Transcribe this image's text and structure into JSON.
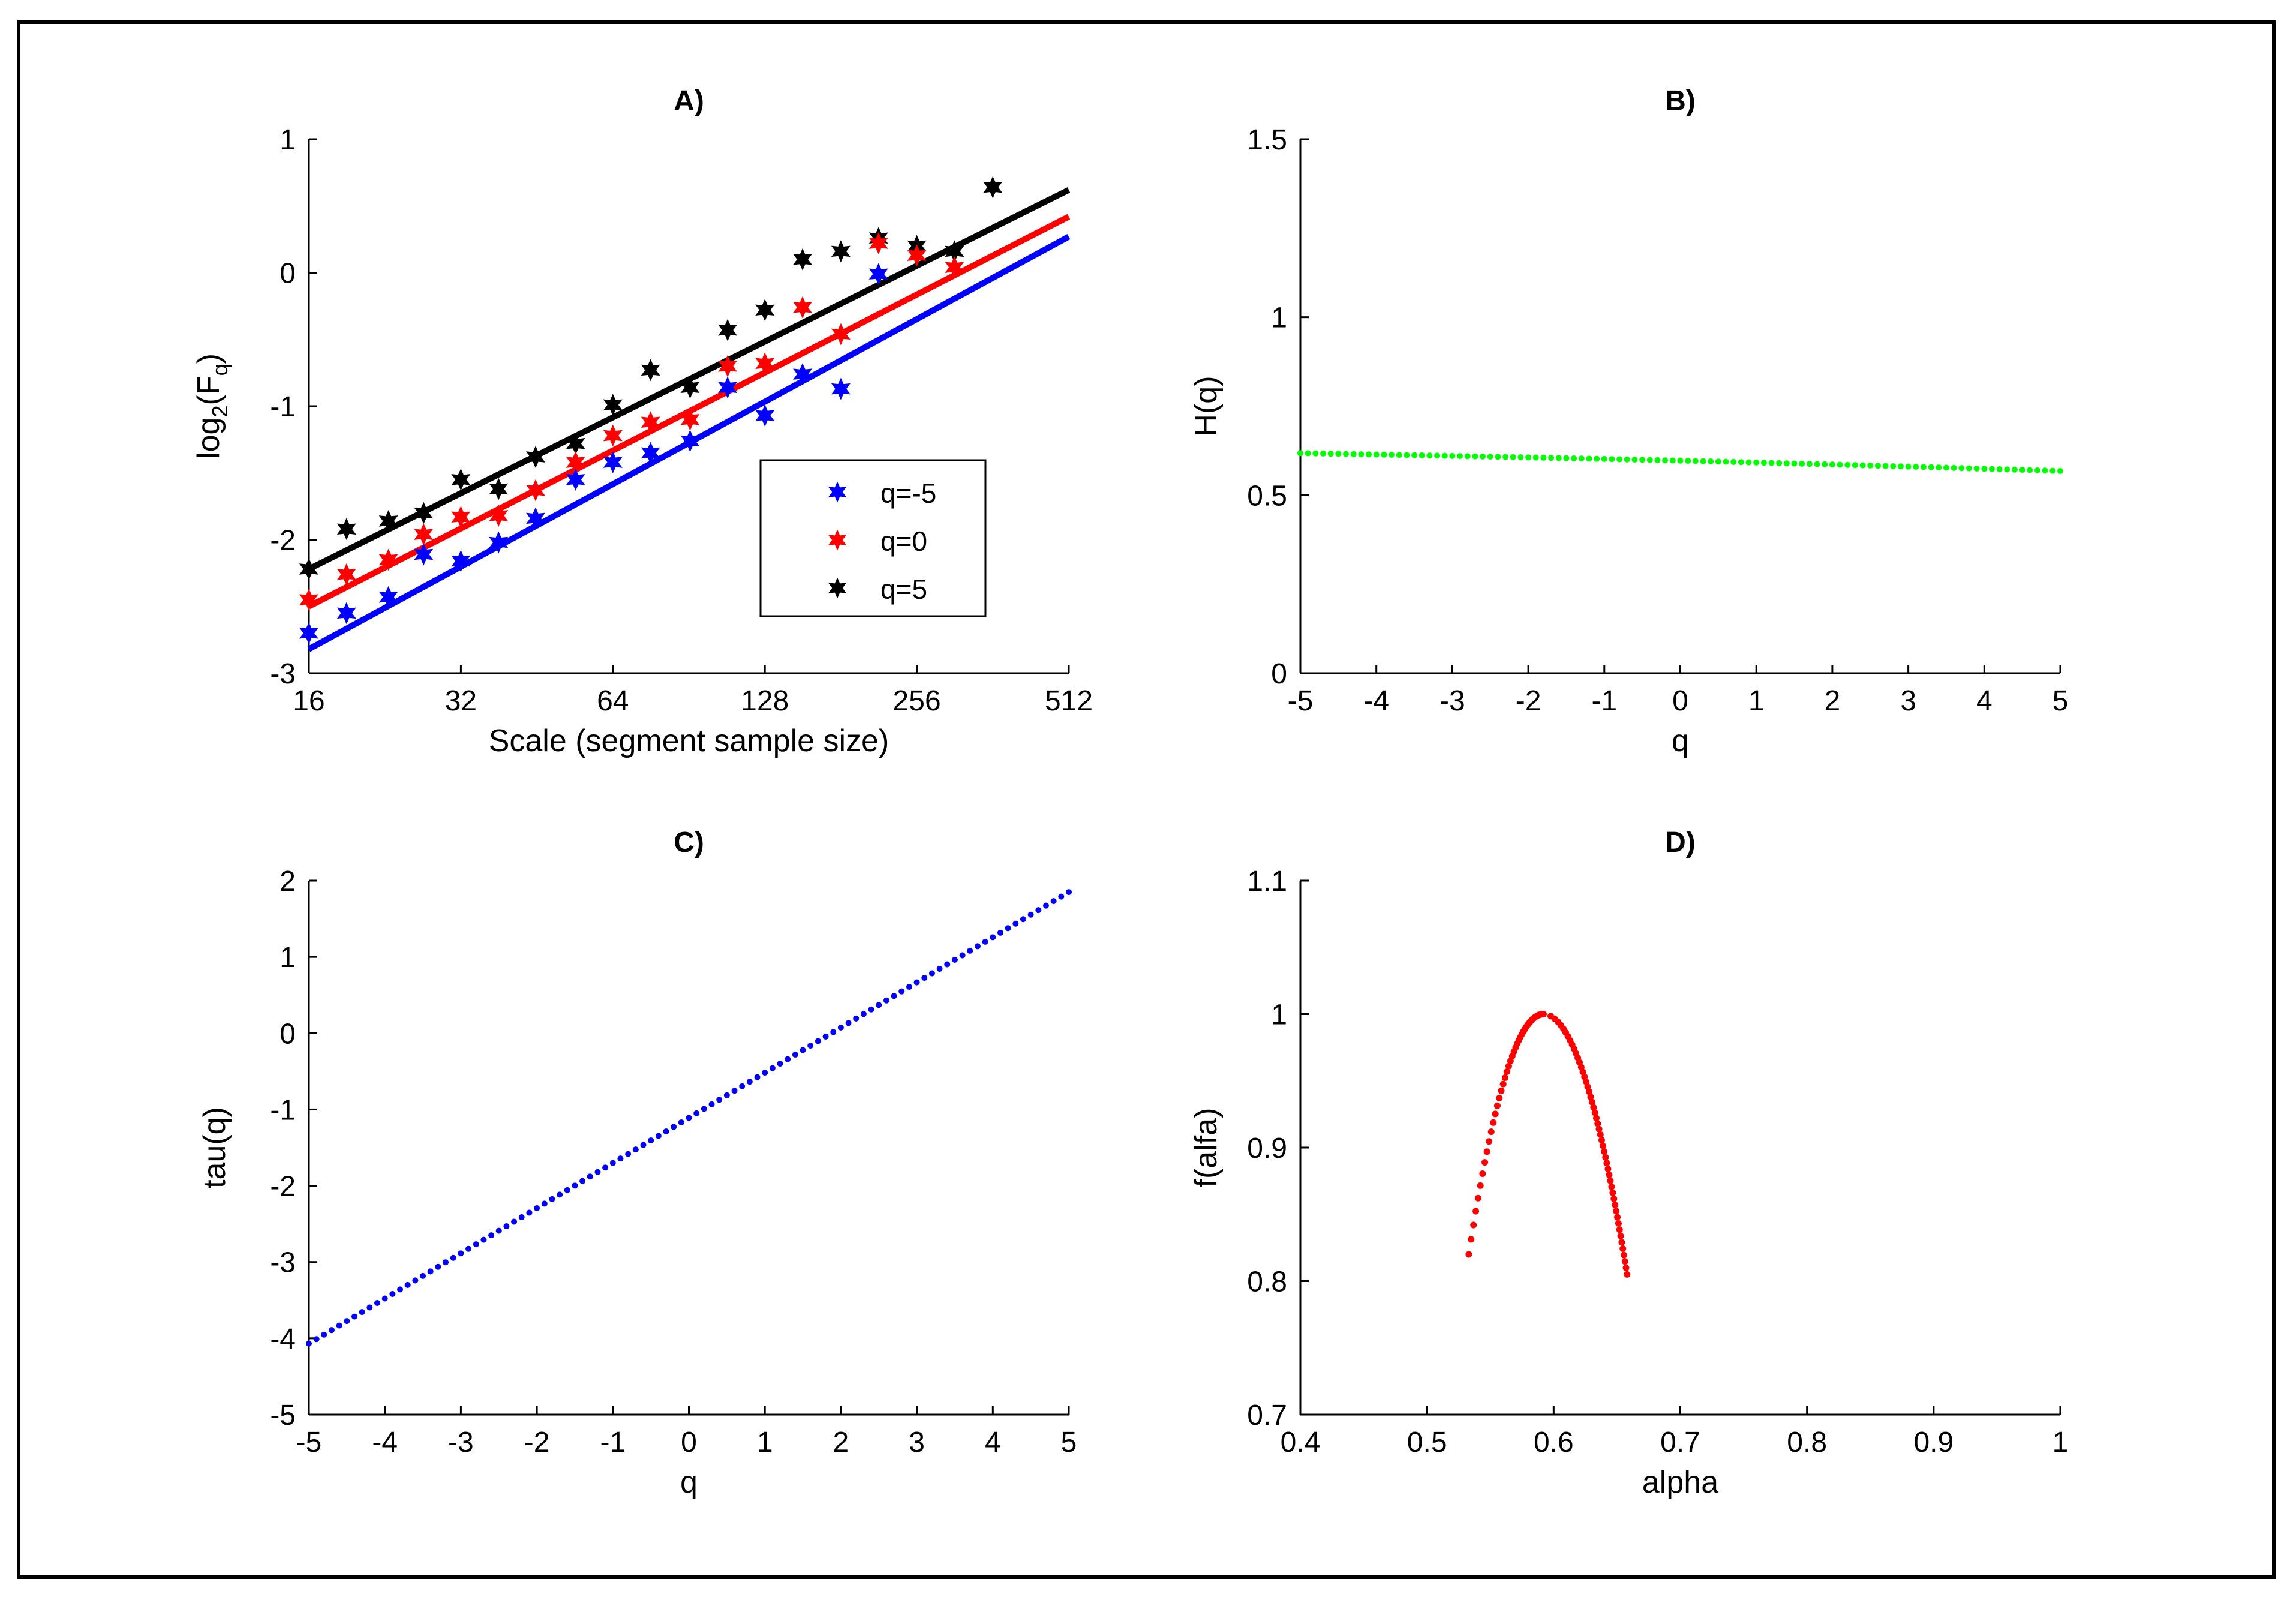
{
  "figure": {
    "colors": {
      "blue": "#0000ff",
      "red": "#ff0000",
      "black": "#000000",
      "green": "#00ff00"
    }
  },
  "chart_data": [
    {
      "id": "A",
      "type": "scatter",
      "title": "A)",
      "xlabel": "Scale (segment sample size)",
      "ylabel_parts": {
        "pre": "log",
        "sub1": "2",
        "mid": "(F",
        "sub2": "q",
        "post": ")"
      },
      "xscale": "log2",
      "xlim": [
        16,
        512
      ],
      "ylim": [
        -3,
        1
      ],
      "xticks": [
        16,
        32,
        64,
        128,
        256,
        512
      ],
      "xtick_labels": [
        "16",
        "32",
        "64",
        "128",
        "256",
        "512"
      ],
      "yticks": [
        -3,
        -2,
        -1,
        0,
        1
      ],
      "ytick_labels": [
        "-3",
        "-2",
        "-1",
        "0",
        "1"
      ],
      "x": [
        16,
        19,
        23,
        27,
        32,
        38,
        45,
        54,
        64,
        76,
        91,
        108,
        128,
        152,
        181,
        215,
        256,
        304,
        362,
        431,
        512
      ],
      "series": [
        {
          "name": "q=5",
          "color": "#000000",
          "values": [
            -2.22,
            -1.92,
            -1.86,
            -1.8,
            -1.55,
            -1.62,
            -1.38,
            -1.28,
            -0.99,
            -0.73,
            -0.86,
            -0.43,
            -0.28,
            0.1,
            0.16,
            0.26,
            0.2,
            0.16,
            0.64,
            null,
            null
          ],
          "x_override": [
            16,
            19,
            23,
            27,
            32,
            38,
            45,
            54,
            64,
            76,
            91,
            108,
            128,
            152,
            181,
            215,
            256,
            304,
            362,
            null,
            512
          ],
          "fit": [
            -2.22,
            0.62
          ]
        },
        {
          "name": "q=0",
          "color": "#ff0000",
          "values": [
            -2.45,
            -2.26,
            -2.15,
            -1.96,
            -1.83,
            -1.82,
            -1.63,
            -1.42,
            -1.22,
            -1.12,
            -1.1,
            -0.7,
            -0.68,
            -0.26,
            -0.46,
            0.22,
            0.13,
            0.04
          ],
          "x_override": [
            16,
            19,
            23,
            27,
            32,
            38,
            45,
            54,
            64,
            76,
            91,
            108,
            128,
            152,
            181,
            215,
            256,
            304
          ],
          "fit": [
            -2.5,
            0.42
          ]
        },
        {
          "name": "q=-5",
          "color": "#0000ff",
          "values": [
            -2.7,
            -2.55,
            -2.43,
            -2.11,
            -2.16,
            -2.02,
            -1.84,
            -1.55,
            -1.42,
            -1.35,
            -1.26,
            -0.86,
            -1.07,
            -0.76,
            -0.87,
            -0.01
          ],
          "x_override": [
            16,
            19,
            23,
            27,
            32,
            38,
            45,
            54,
            64,
            76,
            91,
            108,
            128,
            152,
            181,
            215
          ],
          "fit": [
            -2.82,
            0.27
          ]
        }
      ],
      "legend": {
        "position": "lower-right",
        "entries": [
          "q=-5",
          "q=0",
          "q=5"
        ]
      }
    },
    {
      "id": "B",
      "type": "scatter",
      "title": "B)",
      "xlabel": "q",
      "ylabel": "H(q)",
      "xlim": [
        -5,
        5
      ],
      "ylim": [
        0,
        1.5
      ],
      "xticks": [
        -5,
        -4,
        -3,
        -2,
        -1,
        0,
        1,
        2,
        3,
        4,
        5
      ],
      "xtick_labels": [
        "-5",
        "-4",
        "-3",
        "-2",
        "-1",
        "0",
        "1",
        "2",
        "3",
        "4",
        "5"
      ],
      "yticks": [
        0,
        0.5,
        1,
        1.5
      ],
      "ytick_labels": [
        "0",
        "0.5",
        "1",
        "1.5"
      ],
      "series": [
        {
          "name": "H(q)",
          "color": "#00ff00",
          "q_range": [
            -5,
            5
          ],
          "count": 101,
          "start": 0.618,
          "end": 0.568
        }
      ]
    },
    {
      "id": "C",
      "type": "scatter",
      "title": "C)",
      "xlabel": "q",
      "ylabel": "tau(q)",
      "xlim": [
        -5,
        5
      ],
      "ylim": [
        -5,
        2
      ],
      "xticks": [
        -5,
        -4,
        -3,
        -2,
        -1,
        0,
        1,
        2,
        3,
        4,
        5
      ],
      "xtick_labels": [
        "-5",
        "-4",
        "-3",
        "-2",
        "-1",
        "0",
        "1",
        "2",
        "3",
        "4",
        "5"
      ],
      "yticks": [
        -5,
        -4,
        -3,
        -2,
        -1,
        0,
        1,
        2
      ],
      "ytick_labels": [
        "-5",
        "-4",
        "-3",
        "-2",
        "-1",
        "0",
        "1",
        "2"
      ],
      "series": [
        {
          "name": "tau(q)",
          "color": "#0000ff",
          "q_range": [
            -5,
            5
          ],
          "count": 101,
          "start": -4.07,
          "end": 1.85
        }
      ]
    },
    {
      "id": "D",
      "type": "scatter",
      "title": "D)",
      "xlabel": "alpha",
      "ylabel": "f(alfa)",
      "xlim": [
        0.4,
        1
      ],
      "ylim": [
        0.7,
        1.1
      ],
      "xticks": [
        0.4,
        0.5,
        0.6,
        0.7,
        0.8,
        0.9,
        1
      ],
      "xtick_labels": [
        "0.4",
        "0.5",
        "0.6",
        "0.7",
        "0.8",
        "0.9",
        "1"
      ],
      "yticks": [
        0.7,
        0.8,
        0.9,
        1,
        1.1
      ],
      "ytick_labels": [
        "0.7",
        "0.8",
        "0.9",
        "1",
        "1.1"
      ],
      "series": [
        {
          "name": "f(alpha)",
          "color": "#ff0000",
          "count": 101,
          "alpha_left": 0.533,
          "alpha_peak": 0.592,
          "alpha_right": 0.658,
          "f_left": 0.82,
          "f_peak": 1.0,
          "f_right": 0.805
        }
      ]
    }
  ]
}
